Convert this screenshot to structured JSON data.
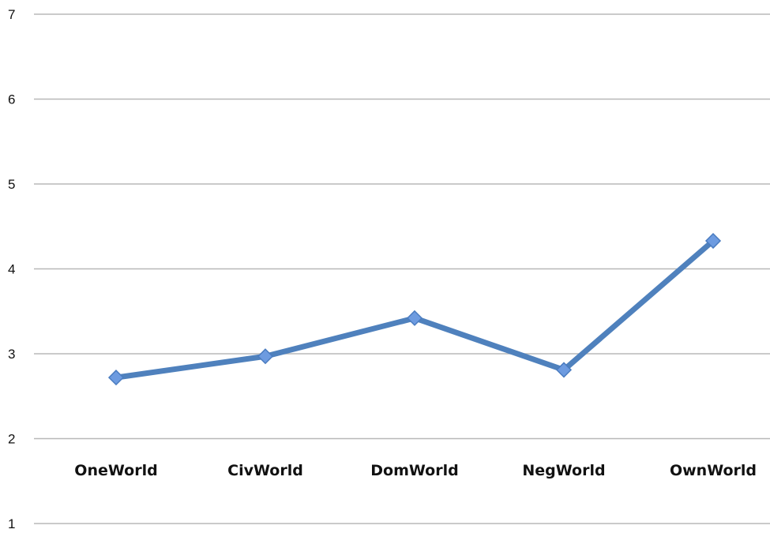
{
  "chart_data": {
    "type": "line",
    "title": "",
    "xlabel": "",
    "ylabel": "",
    "categories": [
      "OneWorld",
      "CivWorld",
      "DomWorld",
      "NegWorld",
      "OwnWorld"
    ],
    "series": [
      {
        "values": [
          2.72,
          2.97,
          3.42,
          2.81,
          4.33
        ]
      }
    ],
    "ylim": [
      1,
      7
    ],
    "yticks": [
      "1",
      "2",
      "3",
      "4",
      "5",
      "6",
      "7"
    ],
    "grid": true,
    "legend": "none",
    "colors": {
      "line": "#4f81bd",
      "marker": "#6d9be0",
      "marker_edge": "#4a7cc0",
      "grid": "#b8b8b8"
    }
  }
}
